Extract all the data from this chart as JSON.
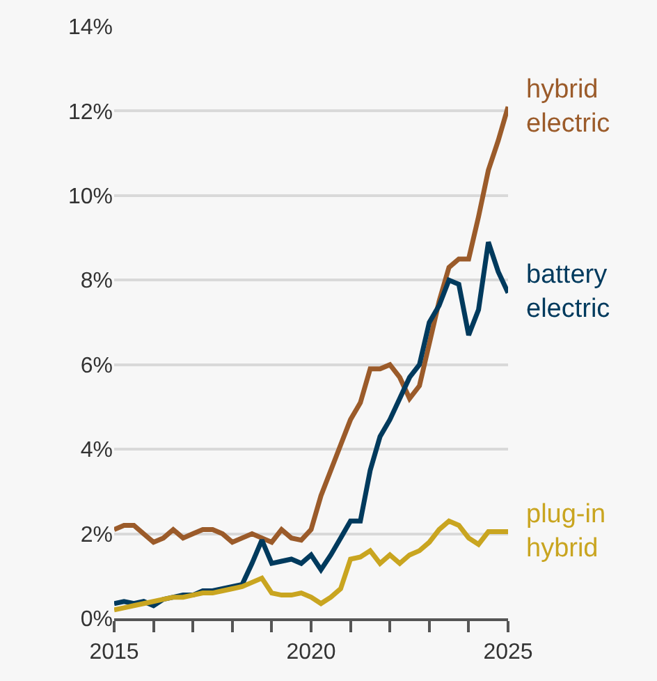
{
  "chart_data": {
    "type": "line",
    "x": [
      2015.0,
      2015.25,
      2015.5,
      2015.75,
      2016.0,
      2016.25,
      2016.5,
      2016.75,
      2017.0,
      2017.25,
      2017.5,
      2017.75,
      2018.0,
      2018.25,
      2018.5,
      2018.75,
      2019.0,
      2019.25,
      2019.5,
      2019.75,
      2020.0,
      2020.25,
      2020.5,
      2020.75,
      2021.0,
      2021.25,
      2021.5,
      2021.75,
      2022.0,
      2022.25,
      2022.5,
      2022.75,
      2023.0,
      2023.25,
      2023.5,
      2023.75,
      2024.0,
      2024.25,
      2024.5,
      2024.75,
      2025.0
    ],
    "series": [
      {
        "name": "hybrid electric",
        "color": "#9b5b2a",
        "values": [
          2.1,
          2.2,
          2.2,
          2.0,
          1.8,
          1.9,
          2.1,
          1.9,
          2.0,
          2.1,
          2.1,
          2.0,
          1.8,
          1.9,
          2.0,
          1.9,
          1.8,
          2.1,
          1.9,
          1.85,
          2.1,
          2.9,
          3.5,
          4.1,
          4.7,
          5.1,
          5.9,
          5.9,
          6.0,
          5.7,
          5.2,
          5.5,
          6.5,
          7.5,
          8.3,
          8.5,
          8.5,
          9.5,
          10.6,
          11.3,
          12.1
        ]
      },
      {
        "name": "battery electric",
        "color": "#003a5d",
        "values": [
          0.35,
          0.4,
          0.35,
          0.4,
          0.3,
          0.45,
          0.5,
          0.55,
          0.55,
          0.65,
          0.65,
          0.7,
          0.75,
          0.8,
          1.3,
          1.85,
          1.3,
          1.35,
          1.4,
          1.3,
          1.5,
          1.15,
          1.5,
          1.9,
          2.3,
          2.3,
          3.5,
          4.3,
          4.7,
          5.2,
          5.7,
          6.0,
          7.0,
          7.4,
          8.0,
          7.9,
          6.7,
          7.3,
          8.9,
          8.2,
          7.7
        ]
      },
      {
        "name": "plug-in hybrid",
        "color": "#c9a520",
        "values": [
          0.2,
          0.25,
          0.3,
          0.35,
          0.4,
          0.45,
          0.5,
          0.5,
          0.55,
          0.6,
          0.6,
          0.65,
          0.7,
          0.75,
          0.85,
          0.95,
          0.6,
          0.55,
          0.55,
          0.6,
          0.5,
          0.35,
          0.5,
          0.7,
          1.4,
          1.45,
          1.6,
          1.3,
          1.5,
          1.3,
          1.5,
          1.6,
          1.8,
          2.1,
          2.3,
          2.2,
          1.9,
          1.75,
          2.05,
          2.05,
          2.05
        ]
      }
    ],
    "xlim": [
      2015,
      2025
    ],
    "xticks": [
      2015,
      {
        "value": 2016,
        "label": null
      },
      {
        "value": 2017,
        "label": null
      },
      {
        "value": 2018,
        "label": null
      },
      {
        "value": 2019,
        "label": null
      },
      2020,
      {
        "value": 2021,
        "label": null
      },
      {
        "value": 2022,
        "label": null
      },
      {
        "value": 2023,
        "label": null
      },
      {
        "value": 2024,
        "label": null
      },
      2025
    ],
    "ylim": [
      0,
      14
    ],
    "yticks": [
      {
        "value": 0,
        "label": "0%"
      },
      {
        "value": 2,
        "label": "2%"
      },
      {
        "value": 4,
        "label": "4%"
      },
      {
        "value": 6,
        "label": "6%"
      },
      {
        "value": 8,
        "label": "8%"
      },
      {
        "value": 10,
        "label": "10%"
      },
      {
        "value": 12,
        "label": "12%"
      },
      {
        "value": 14,
        "label": "14%"
      }
    ],
    "grid": "y",
    "legend": false,
    "marker": "none",
    "line_style": "solid"
  }
}
